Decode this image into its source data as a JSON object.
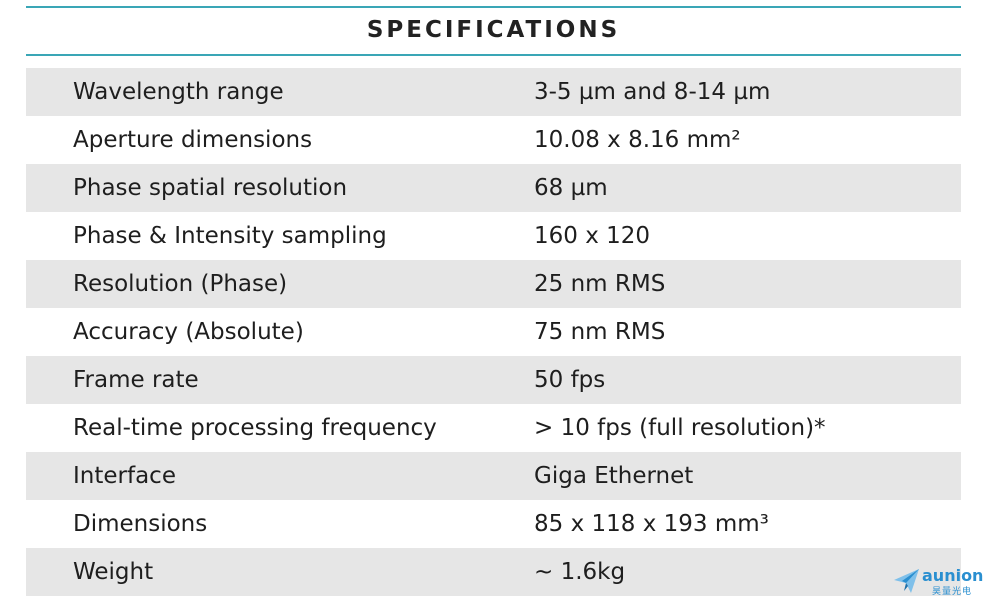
{
  "header": {
    "title": "SPECIFICATIONS"
  },
  "specs": [
    {
      "label": "Wavelength range",
      "value": "3-5 µm and 8-14 µm"
    },
    {
      "label": "Aperture dimensions",
      "value": "10.08 x 8.16 mm²"
    },
    {
      "label": "Phase spatial resolution",
      "value": "68 µm"
    },
    {
      "label": "Phase & Intensity sampling",
      "value": "160 x 120"
    },
    {
      "label": "Resolution (Phase)",
      "value": "25 nm RMS"
    },
    {
      "label": "Accuracy (Absolute)",
      "value": "75 nm RMS"
    },
    {
      "label": "Frame rate",
      "value": "50 fps"
    },
    {
      "label": "Real-time processing frequency",
      "value": "> 10 fps (full resolution)*"
    },
    {
      "label": "Interface",
      "value": "Giga Ethernet"
    },
    {
      "label": "Dimensions",
      "value": "85 x 118 x 193 mm³"
    },
    {
      "label": "Weight",
      "value": "~ 1.6kg"
    }
  ],
  "watermark": {
    "brand": "aunion",
    "subtitle": "昊量光电",
    "icon": "paper-plane-icon"
  },
  "colors": {
    "accent_rule": "#3aa6b6",
    "row_shade": "#e6e6e6",
    "logo_blue": "#2a8fd0"
  }
}
